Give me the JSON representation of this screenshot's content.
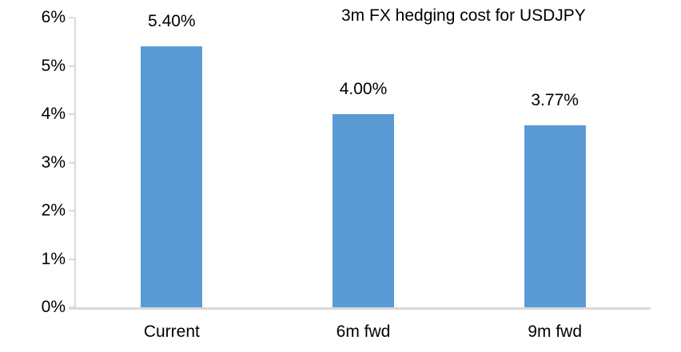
{
  "chart_data": {
    "type": "bar",
    "title": "3m FX hedging cost for USDJPY",
    "categories": [
      "Current",
      "6m fwd",
      "9m fwd"
    ],
    "values": [
      5.4,
      4.0,
      3.77
    ],
    "value_labels": [
      "5.40%",
      "4.00%",
      "3.77%"
    ],
    "ylim": [
      0,
      6
    ],
    "ytick_values": [
      0,
      1,
      2,
      3,
      4,
      5,
      6
    ],
    "ytick_labels": [
      "0%",
      "1%",
      "2%",
      "3%",
      "4%",
      "5%",
      "6%"
    ],
    "grid": false,
    "legend": false,
    "xlabel": "",
    "ylabel": "",
    "bar_color": "#5B9BD5",
    "axis_color": "#D9D9D9",
    "text_color": "#000000",
    "background": "#FFFFFF"
  }
}
